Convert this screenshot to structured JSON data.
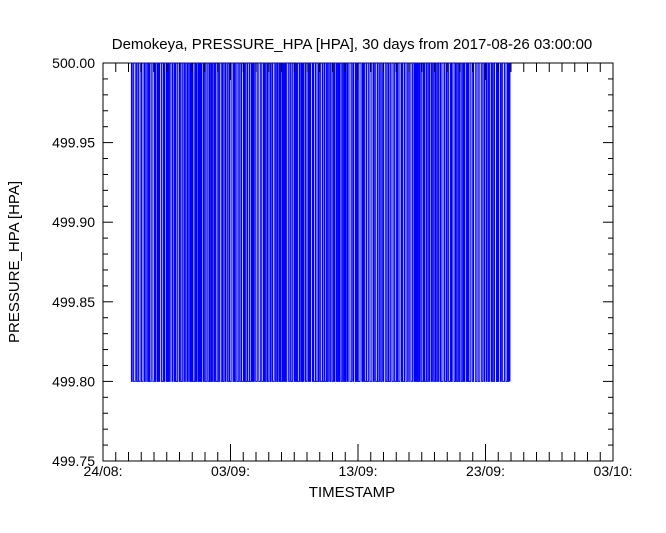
{
  "chart_data": {
    "type": "line",
    "title": "Demokeya, PRESSURE_HPA [HPA], 30 days from  2017-08-26 03:00:00",
    "xlabel": "TIMESTAMP",
    "ylabel": "PRESSURE_HPA [HPA]",
    "xlim": [
      "2017-08-24",
      "2017-10-03"
    ],
    "ylim": [
      499.75,
      500.0
    ],
    "x_ticks": [
      "24/08:",
      "03/09:",
      "13/09:",
      "23/09:",
      "03/10:"
    ],
    "y_ticks": [
      "500.00",
      "499.95",
      "499.90",
      "499.85",
      "499.80",
      "499.75"
    ],
    "grid": false,
    "series": [
      {
        "color": "#0000ff",
        "x_range": [
          "2017-08-26T03:00:00",
          "2017-09-24T22:00:00"
        ],
        "pattern": "rapid oscillation between the two levels",
        "levels": [
          499.8,
          500.0
        ]
      }
    ]
  }
}
